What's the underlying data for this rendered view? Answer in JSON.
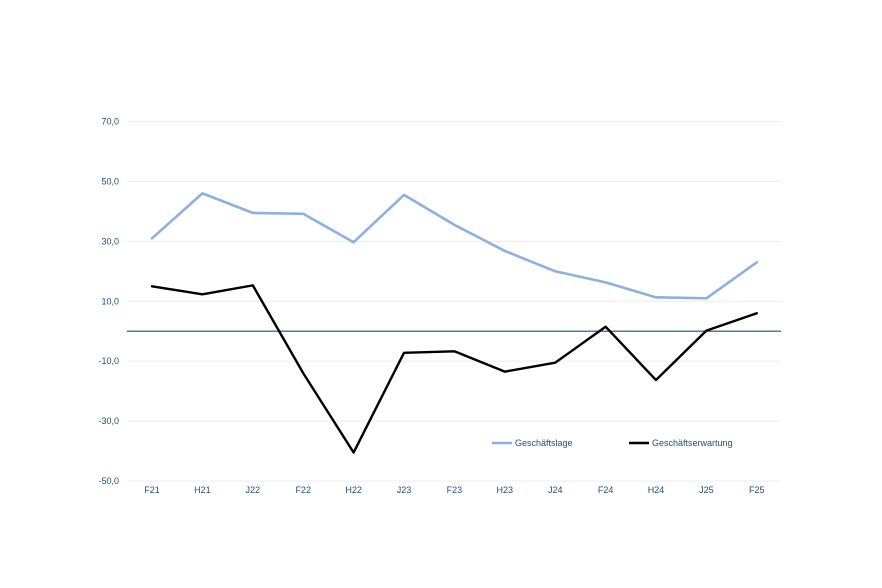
{
  "chart_data": {
    "type": "line",
    "categories": [
      "F21",
      "H21",
      "J22",
      "F22",
      "H22",
      "J23",
      "F23",
      "H23",
      "J24",
      "F24",
      "H24",
      "J25",
      "F25"
    ],
    "series": [
      {
        "name": "Geschäftslage",
        "color": "#8db0de",
        "values": [
          31.0,
          46.0,
          39.5,
          39.2,
          29.7,
          45.5,
          35.5,
          26.8,
          20.0,
          16.3,
          11.3,
          11.0,
          23.0
        ]
      },
      {
        "name": "Geschäftserwartung",
        "color": "#000000",
        "values": [
          15.0,
          12.3,
          15.3,
          -14.0,
          -40.5,
          -7.2,
          -6.7,
          -13.5,
          -10.5,
          1.5,
          -16.3,
          0.2,
          6.0
        ]
      }
    ],
    "y_ticks": [
      "70,0",
      "50,0",
      "30,0",
      "10,0",
      "-10,0",
      "-30,0",
      "-50,0"
    ],
    "y_tick_values": [
      70,
      50,
      30,
      10,
      -10,
      -30,
      -50
    ],
    "ylim": [
      -50,
      70
    ],
    "zero_line": 0,
    "zero_line_color": "#1f4e79",
    "axis_label_color": "#1f4e79",
    "grid": true,
    "legend_position": "bottom-right",
    "title": "",
    "xlabel": "",
    "ylabel": ""
  }
}
